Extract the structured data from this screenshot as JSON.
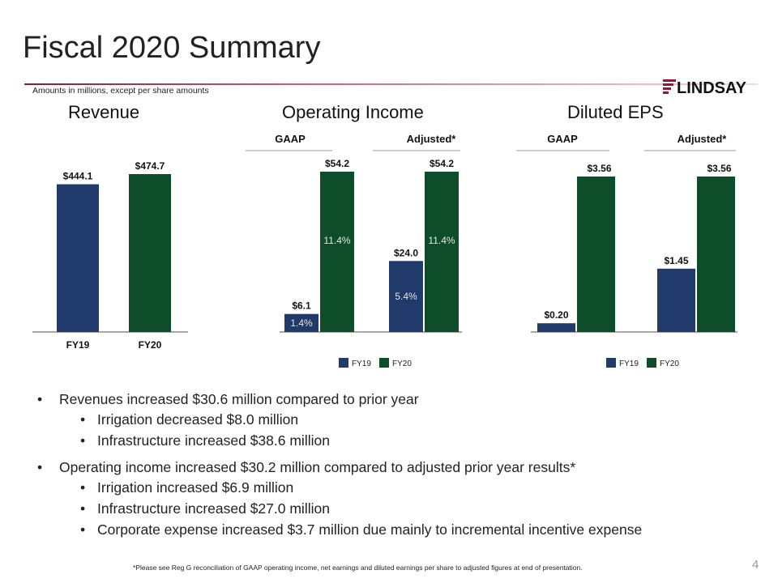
{
  "slide": {
    "title": "Fiscal 2020 Summary",
    "subnote": "Amounts in millions, except per share amounts",
    "logo_text": "LINDSAY",
    "page_number": "4",
    "footnote": "*Please see Reg G reconciliation of GAAP operating income, net earnings and diluted earnings per share to adjusted figures at end of presentation."
  },
  "sections": {
    "revenue": "Revenue",
    "operating_income": "Operating Income",
    "diluted_eps": "Diluted EPS"
  },
  "colors": {
    "fy19": "#1f3a6b",
    "fy20": "#0e4d2a",
    "margin_text": "#e6e6e6",
    "accent": "#8b1b3a"
  },
  "chart_data": [
    {
      "type": "bar",
      "title": "Revenue",
      "categories": [
        "FY19",
        "FY20"
      ],
      "values": [
        444.1,
        474.7
      ],
      "data_labels": [
        "$444.1",
        "$474.7"
      ],
      "colors": [
        "#1f3a6b",
        "#0e4d2a"
      ]
    },
    {
      "type": "bar",
      "title": "Operating Income",
      "groups": [
        "GAAP",
        "Adjusted*"
      ],
      "series": [
        {
          "name": "FY19",
          "values": [
            6.1,
            24.0
          ],
          "data_labels": [
            "$6.1",
            "$24.0"
          ],
          "margins": [
            "1.4%",
            "5.4%"
          ]
        },
        {
          "name": "FY20",
          "values": [
            54.2,
            54.2
          ],
          "data_labels": [
            "$54.2",
            "$54.2"
          ],
          "margins": [
            "11.4%",
            "11.4%"
          ]
        }
      ],
      "legend": "bottom"
    },
    {
      "type": "bar",
      "title": "Diluted EPS",
      "groups": [
        "GAAP",
        "Adjusted*"
      ],
      "series": [
        {
          "name": "FY19",
          "values": [
            0.2,
            1.45
          ],
          "data_labels": [
            "$0.20",
            "$1.45"
          ]
        },
        {
          "name": "FY20",
          "values": [
            3.56,
            3.56
          ],
          "data_labels": [
            "$3.56",
            "$3.56"
          ]
        }
      ],
      "legend": "bottom"
    }
  ],
  "bullets": [
    {
      "text": "Revenues increased $30.6 million compared to prior year",
      "sub": [
        "Irrigation decreased $8.0 million",
        "Infrastructure increased $38.6 million"
      ]
    },
    {
      "text": "Operating income increased $30.2 million compared to adjusted prior year results*",
      "sub": [
        "Irrigation increased $6.9 million",
        "Infrastructure increased $27.0 million",
        "Corporate expense increased $3.7 million due mainly to incremental incentive expense"
      ]
    }
  ]
}
